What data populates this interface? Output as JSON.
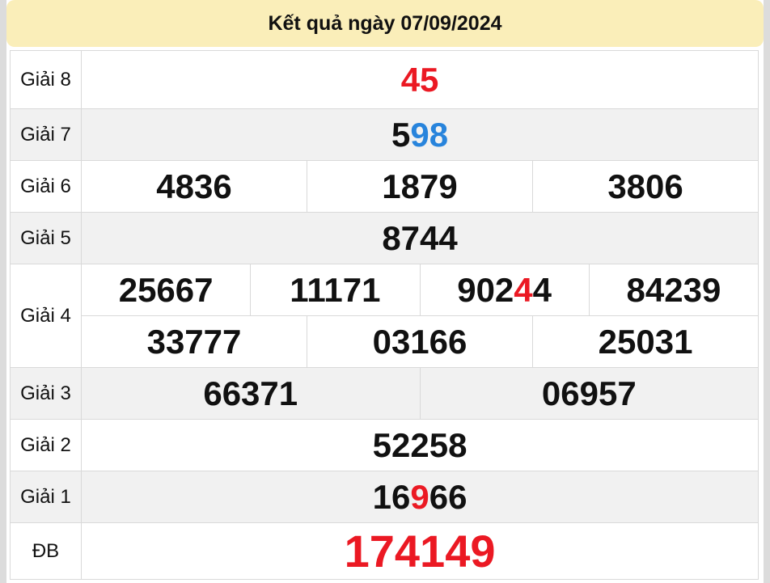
{
  "page_title": "Kết quả ngày 07/09/2024",
  "colors": {
    "red": "#EB1923",
    "blue": "#2884DC",
    "black": "#111111",
    "header_bg": "#FAEEB9",
    "stripe_bg": "#F1F1F1",
    "border": "#D9D9D9"
  },
  "results": [
    {
      "label": "Giải 8",
      "rows": [
        [
          [
            {
              "text": "45",
              "color": "red"
            }
          ]
        ]
      ]
    },
    {
      "label": "Giải 7",
      "rows": [
        [
          [
            {
              "text": "5",
              "color": "black"
            },
            {
              "text": "98",
              "color": "blue"
            }
          ]
        ]
      ]
    },
    {
      "label": "Giải 6",
      "rows": [
        [
          [
            {
              "text": "4836"
            }
          ],
          [
            {
              "text": "1879"
            }
          ],
          [
            {
              "text": "3806"
            }
          ]
        ]
      ]
    },
    {
      "label": "Giải 5",
      "rows": [
        [
          [
            {
              "text": "8744"
            }
          ]
        ]
      ]
    },
    {
      "label": "Giải 4",
      "rows": [
        [
          [
            {
              "text": "25667"
            }
          ],
          [
            {
              "text": "11171"
            }
          ],
          [
            {
              "text": "902",
              "color": "black"
            },
            {
              "text": "4",
              "color": "red"
            },
            {
              "text": "4",
              "color": "black"
            }
          ],
          [
            {
              "text": "84239"
            }
          ]
        ],
        [
          [
            {
              "text": "33777"
            }
          ],
          [
            {
              "text": "03166"
            }
          ],
          [
            {
              "text": "25031"
            }
          ]
        ]
      ]
    },
    {
      "label": "Giải 3",
      "rows": [
        [
          [
            {
              "text": "66371"
            }
          ],
          [
            {
              "text": "06957"
            }
          ]
        ]
      ]
    },
    {
      "label": "Giải 2",
      "rows": [
        [
          [
            {
              "text": "52258"
            }
          ]
        ]
      ]
    },
    {
      "label": "Giải 1",
      "rows": [
        [
          [
            {
              "text": "16",
              "color": "black"
            },
            {
              "text": "9",
              "color": "red"
            },
            {
              "text": "66",
              "color": "black"
            }
          ]
        ]
      ]
    },
    {
      "label": "ĐB",
      "special": true,
      "rows": [
        [
          [
            {
              "text": "174149",
              "color": "red"
            }
          ]
        ]
      ]
    }
  ]
}
